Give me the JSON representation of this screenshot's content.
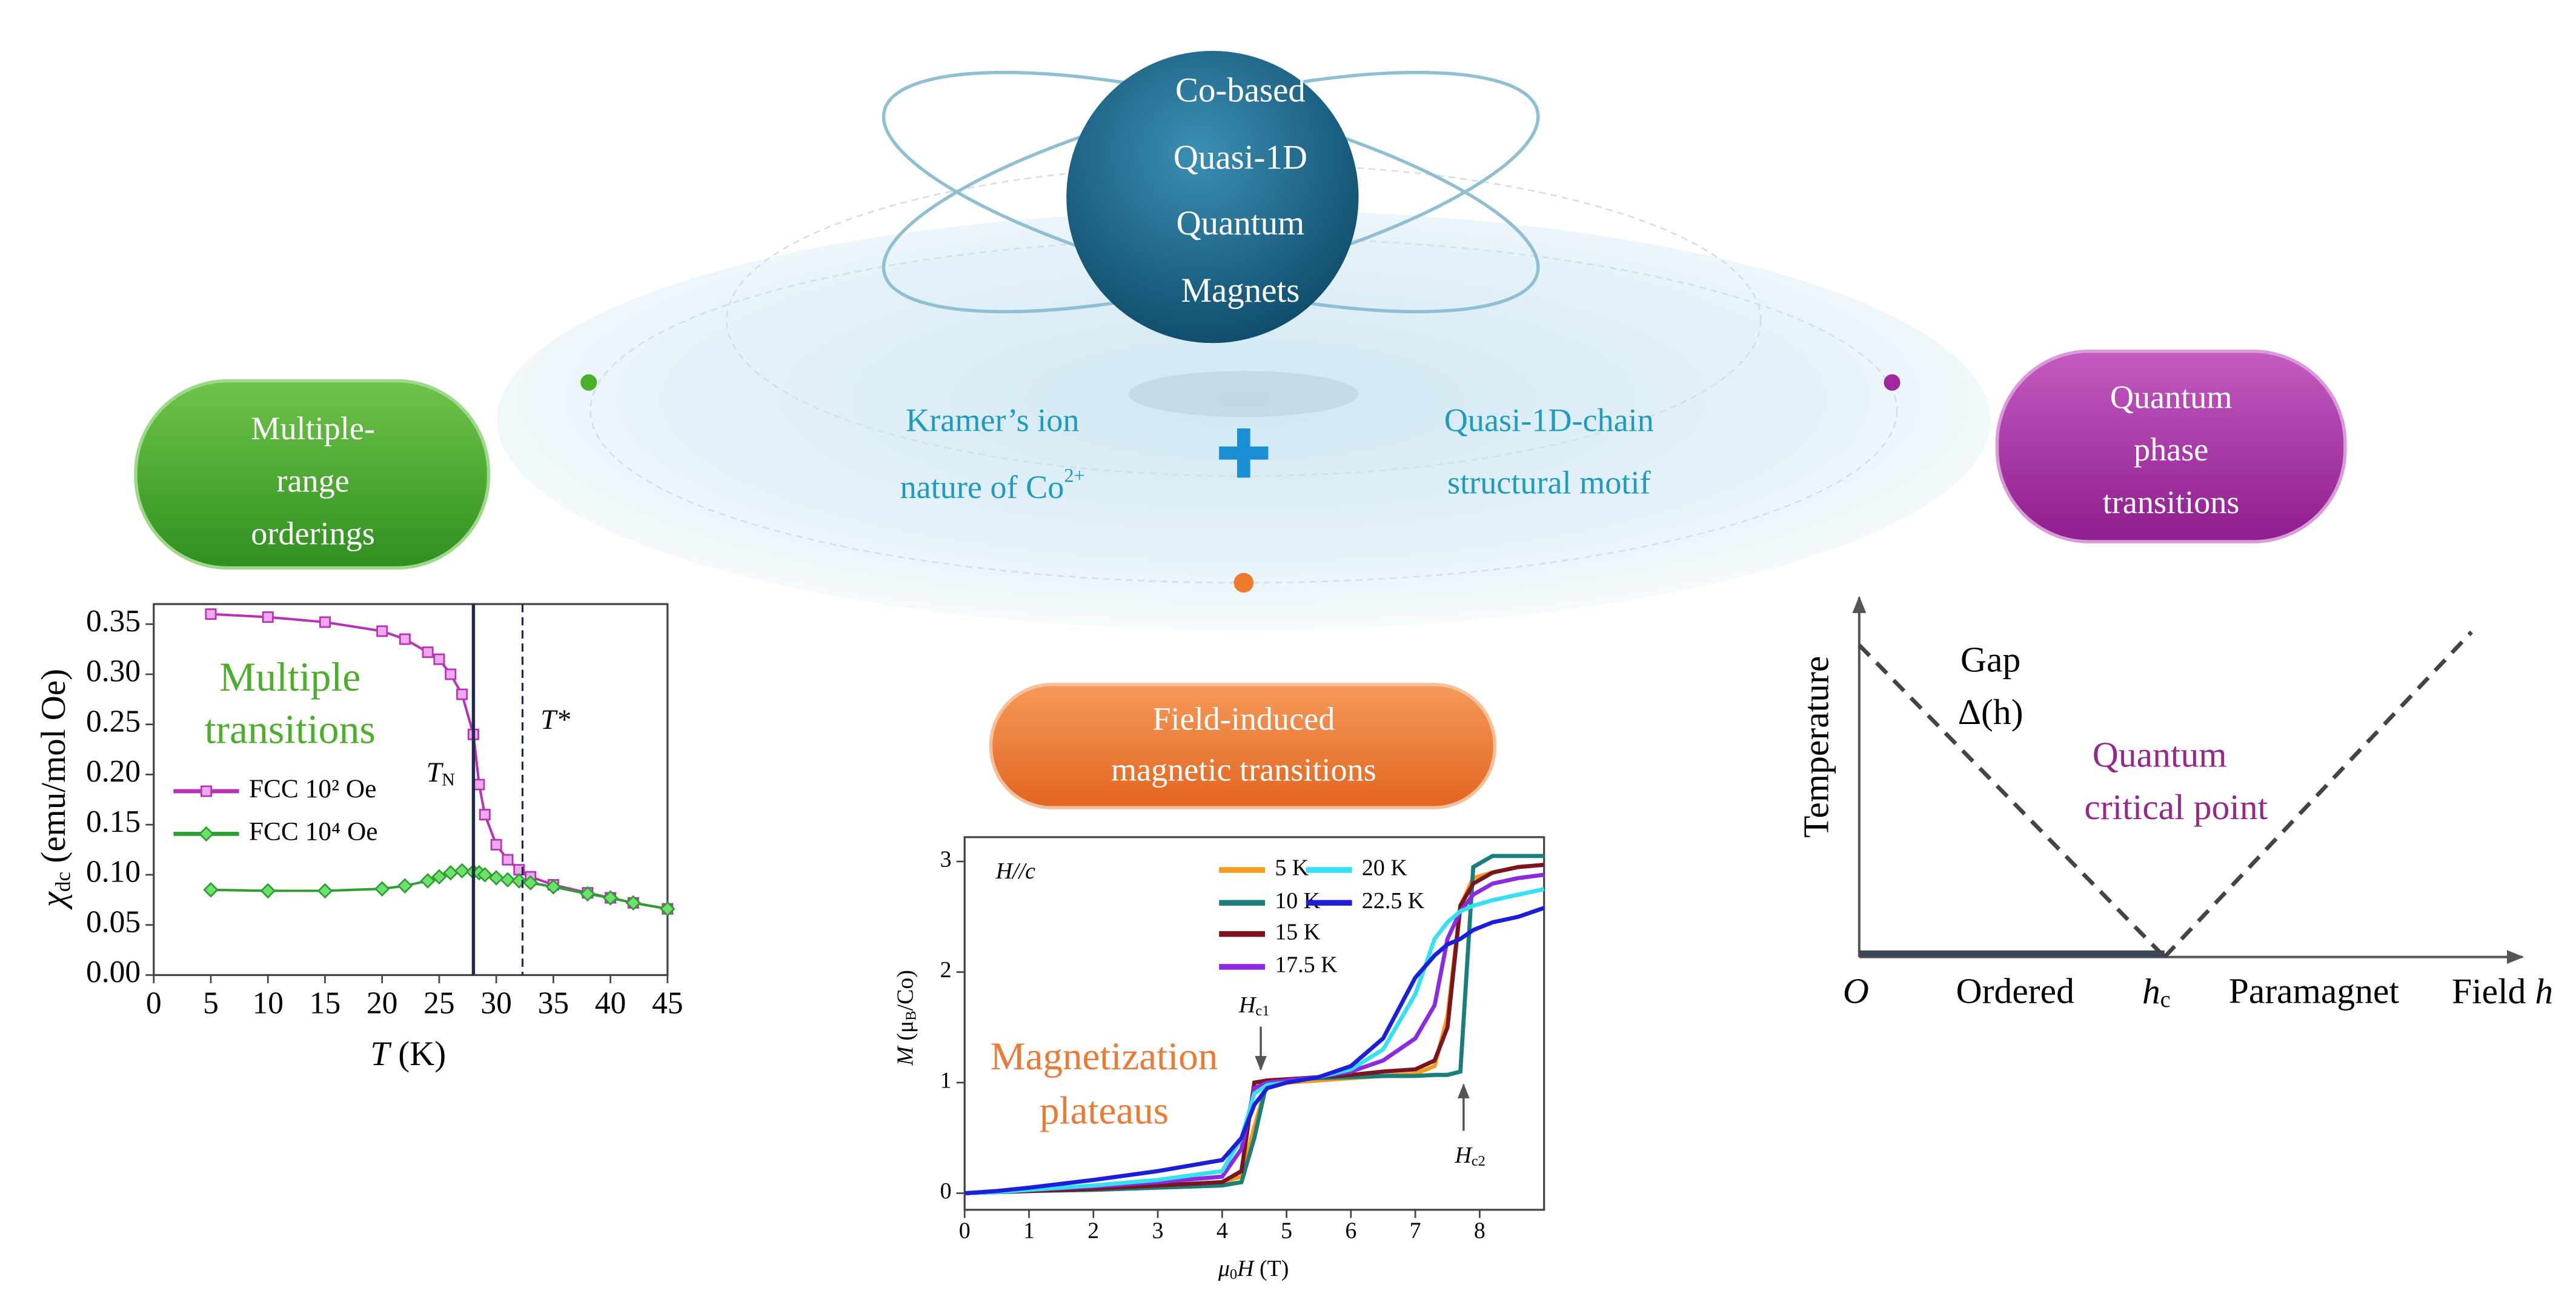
{
  "hub": {
    "title_lines": [
      "Co-based",
      "Quasi-1D",
      "Quantum",
      "Magnets"
    ],
    "left_lines": [
      "Kramer’s ion",
      "nature of Co"
    ],
    "left_sup": "2+",
    "right_lines": [
      "Quasi-1D-chain",
      "structural motif"
    ]
  },
  "badges": [
    {
      "lines": [
        "Multiple-",
        "range",
        "orderings"
      ]
    },
    {
      "lines": [
        "Field-induced",
        "magnetic transitions"
      ]
    },
    {
      "lines": [
        "Quantum",
        "phase",
        "transitions"
      ]
    }
  ],
  "chart_data": [
    {
      "type": "line",
      "y_label": "χ",
      "y_label_sub": "dc",
      "y_label_unit": " (emu/mol Oe)",
      "x_label": "T",
      "x_label_unit": " (K)",
      "annotation": [
        "Multiple",
        "transitions"
      ],
      "markers": [
        {
          "x": 28,
          "label": "T",
          "sub": "N"
        },
        {
          "x": 32.3,
          "label": "T*"
        }
      ],
      "xlim": [
        0,
        45
      ],
      "xticks": [
        0,
        5,
        10,
        15,
        20,
        25,
        30,
        35,
        40,
        45
      ],
      "ylim": [
        0,
        0.37
      ],
      "yticks": [
        {
          "value": 0,
          "label": "0.00"
        },
        {
          "value": 0.05,
          "label": "0.05"
        },
        {
          "value": 0.1,
          "label": "0.10"
        },
        {
          "value": 0.15,
          "label": "0.15"
        },
        {
          "value": 0.2,
          "label": "0.20"
        },
        {
          "value": 0.25,
          "label": "0.25"
        },
        {
          "value": 0.3,
          "label": "0.30"
        },
        {
          "value": 0.35,
          "label": "0.35"
        }
      ],
      "x": [
        5,
        10,
        15,
        20,
        22,
        24,
        25,
        26,
        27,
        28,
        28.5,
        29,
        30,
        31,
        32,
        33,
        35,
        38,
        40,
        42,
        45
      ],
      "series": [
        {
          "name": "FCC 10² Oe",
          "color": "#b832b8",
          "marker": "square",
          "values": [
            0.36,
            0.357,
            0.352,
            0.343,
            0.335,
            0.322,
            0.315,
            0.3,
            0.28,
            0.24,
            0.19,
            0.16,
            0.13,
            0.115,
            0.105,
            0.098,
            0.09,
            0.082,
            0.077,
            0.072,
            0.066
          ]
        },
        {
          "name": "FCC 10⁴ Oe",
          "color": "#2e9e2e",
          "marker": "diamond",
          "values": [
            0.085,
            0.084,
            0.084,
            0.086,
            0.089,
            0.094,
            0.098,
            0.102,
            0.104,
            0.103,
            0.102,
            0.1,
            0.097,
            0.095,
            0.094,
            0.092,
            0.088,
            0.081,
            0.077,
            0.072,
            0.066
          ]
        }
      ]
    },
    {
      "type": "line",
      "y_label": "M",
      "y_label_unit_parts": [
        " (μ",
        "B",
        "/Co)"
      ],
      "x_label_parts": [
        "μ",
        "0",
        "H",
        " (T)"
      ],
      "annotation_top": "H//c",
      "annotation": [
        "Magnetization",
        "plateaus"
      ],
      "arrows": [
        {
          "x": 4.6,
          "y": 1.12,
          "direction": "down",
          "label": "H",
          "sub": "c1"
        },
        {
          "x": 7.75,
          "y": 0.98,
          "direction": "up",
          "label": "H",
          "sub": "c2"
        }
      ],
      "xlim": [
        0,
        9
      ],
      "xticks": [
        0,
        1,
        2,
        3,
        4,
        5,
        6,
        7,
        8
      ],
      "ylim": [
        -0.15,
        3.22
      ],
      "yticks": [
        0,
        1,
        2,
        3
      ],
      "x": [
        0,
        0.5,
        1,
        2,
        3,
        4,
        4.3,
        4.5,
        4.7,
        5,
        5.5,
        6,
        6.5,
        7,
        7.3,
        7.5,
        7.7,
        7.9,
        8.2,
        8.6,
        9
      ],
      "series": [
        {
          "name": "5 K",
          "color": "#f39c1e",
          "values": [
            0,
            0.01,
            0.02,
            0.04,
            0.07,
            0.1,
            0.15,
            0.6,
            1.0,
            1.0,
            1.02,
            1.04,
            1.06,
            1.08,
            1.15,
            1.6,
            2.6,
            2.85,
            2.9,
            2.95,
            2.97
          ]
        },
        {
          "name": "10 K",
          "color": "#1a7f7a",
          "values": [
            0,
            0.01,
            0.02,
            0.03,
            0.05,
            0.07,
            0.1,
            0.5,
            1.02,
            1.03,
            1.04,
            1.05,
            1.06,
            1.06,
            1.07,
            1.07,
            1.1,
            2.95,
            3.05,
            3.05,
            3.05
          ]
        },
        {
          "name": "15 K",
          "color": "#7a1520",
          "values": [
            0,
            0.01,
            0.02,
            0.04,
            0.07,
            0.1,
            0.2,
            1.0,
            1.02,
            1.03,
            1.05,
            1.07,
            1.1,
            1.12,
            1.2,
            1.5,
            2.6,
            2.8,
            2.9,
            2.95,
            2.97
          ]
        },
        {
          "name": "17.5 K",
          "color": "#8a2be2",
          "values": [
            0,
            0.01,
            0.03,
            0.06,
            0.1,
            0.15,
            0.4,
            0.95,
            1.0,
            1.02,
            1.05,
            1.1,
            1.2,
            1.4,
            1.7,
            2.3,
            2.55,
            2.7,
            2.8,
            2.85,
            2.88
          ]
        },
        {
          "name": "20 K",
          "color": "#35e0f0",
          "values": [
            0,
            0.01,
            0.03,
            0.07,
            0.12,
            0.2,
            0.5,
            0.9,
            0.98,
            1.0,
            1.05,
            1.12,
            1.3,
            1.8,
            2.3,
            2.45,
            2.55,
            2.6,
            2.65,
            2.7,
            2.75
          ]
        },
        {
          "name": "22.5 K",
          "color": "#1c1fd8",
          "values": [
            0,
            0.02,
            0.05,
            0.12,
            0.2,
            0.3,
            0.5,
            0.8,
            0.95,
            1.0,
            1.05,
            1.15,
            1.4,
            1.95,
            2.15,
            2.25,
            2.3,
            2.38,
            2.45,
            2.5,
            2.58
          ]
        }
      ]
    }
  ],
  "phase_diagram": {
    "gap": "Gap",
    "gap_symbol": "Δ(h)",
    "qcp_lines": [
      "Quantum",
      "critical point"
    ],
    "y_label": "Temperature",
    "origin": "O",
    "ordered": "Ordered",
    "hc": "h",
    "hc_sub": "c",
    "paramagnet": "Paramagnet",
    "x_label": "Field ",
    "x_symbol": "h"
  }
}
